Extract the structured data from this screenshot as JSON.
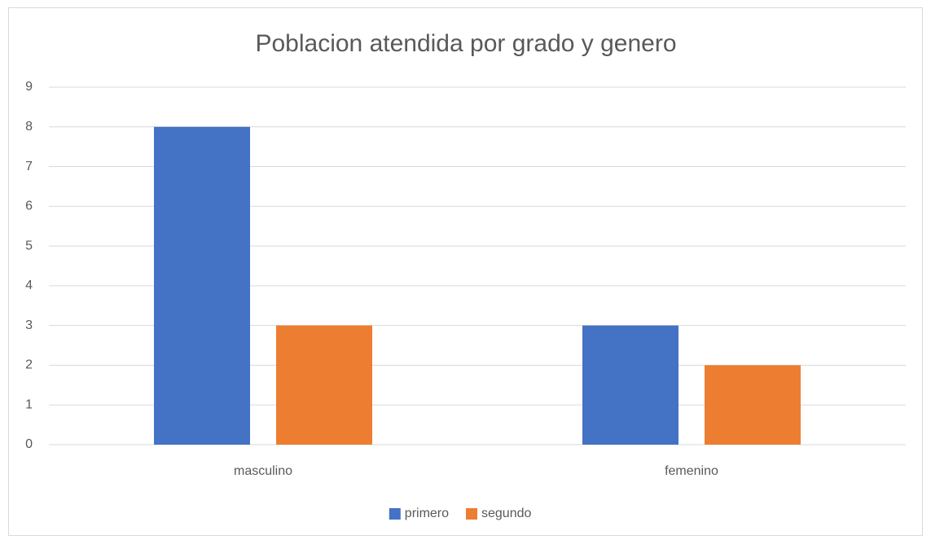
{
  "chart_data": {
    "type": "bar",
    "title": "Poblacion atendida por grado y genero",
    "categories": [
      "masculino",
      "femenino"
    ],
    "series": [
      {
        "name": "primero",
        "color": "#4472c4",
        "values": [
          8,
          3
        ]
      },
      {
        "name": "segundo",
        "color": "#ed7d31",
        "values": [
          3,
          2
        ]
      }
    ],
    "ylim": [
      0,
      9
    ],
    "yticks": [
      0,
      1,
      2,
      3,
      4,
      5,
      6,
      7,
      8,
      9
    ],
    "grid": true,
    "legend": "bottom"
  }
}
